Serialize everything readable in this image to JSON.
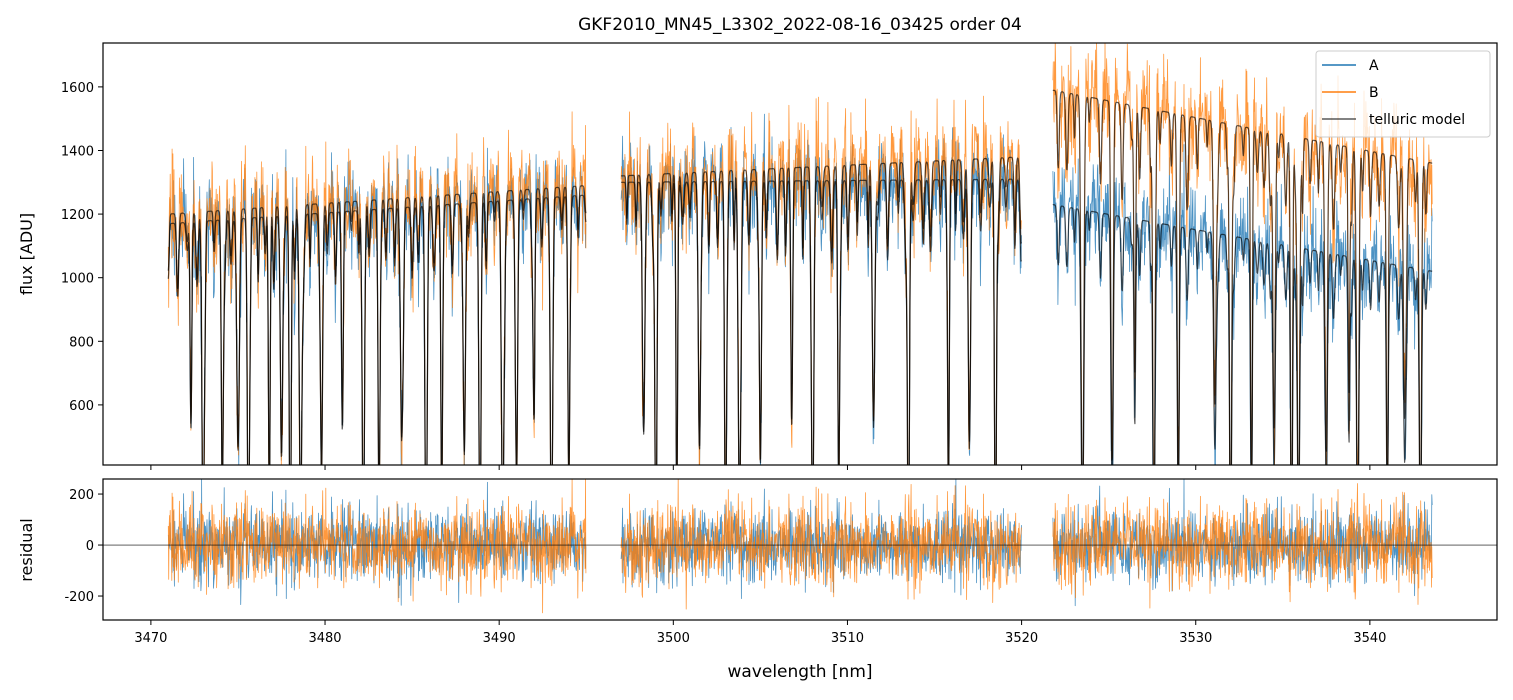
{
  "chart_data": {
    "type": "line",
    "title": "GKF2010_MN45_L3302_2022-08-16_03425  order 04",
    "xlabel": "wavelength [nm]",
    "xlim": [
      3467.25,
      3547.3
    ],
    "xticks": [
      3470,
      3480,
      3490,
      3500,
      3510,
      3520,
      3530,
      3540
    ],
    "panels": [
      {
        "name": "flux",
        "ylabel": "flux [ADU]",
        "ylim": [
          411,
          1738
        ],
        "yticks": [
          600,
          800,
          1000,
          1200,
          1400,
          1600
        ]
      },
      {
        "name": "residual",
        "ylabel": "residual",
        "ylim": [
          -294,
          259
        ],
        "yticks": [
          -200,
          0,
          200
        ]
      }
    ],
    "legend": {
      "placement": "top-right",
      "entries": [
        "A",
        "B",
        "telluric model"
      ]
    },
    "colors": {
      "A": "#1f77b4",
      "B": "#ff7f0e",
      "model": "#000000"
    },
    "segments": [
      {
        "start": 3471.0,
        "end": 3495.0,
        "continuum_A": [
          1170,
          1260
        ],
        "continuum_B": [
          1200,
          1290
        ]
      },
      {
        "start": 3497.0,
        "end": 3520.0,
        "continuum_A": [
          1300,
          1310
        ],
        "continuum_B": [
          1320,
          1380
        ]
      },
      {
        "start": 3521.8,
        "end": 3543.6,
        "continuum_A": [
          1230,
          1020
        ],
        "continuum_B": [
          1590,
          1360
        ]
      }
    ],
    "noise_sigma": {
      "A": 70,
      "B": 80
    },
    "telluric_lines": [
      3472.3,
      3473.0,
      3474.1,
      3475.0,
      3475.6,
      3476.8,
      3477.5,
      3478.0,
      3478.6,
      3479.8,
      3481.0,
      3482.2,
      3483.1,
      3484.4,
      3485.8,
      3486.7,
      3488.0,
      3488.9,
      3490.2,
      3491.0,
      3492.0,
      3493.0,
      3494.0,
      3498.3,
      3499.0,
      3500.2,
      3501.5,
      3503.0,
      3503.8,
      3505.0,
      3506.8,
      3508.0,
      3509.5,
      3511.5,
      3513.5,
      3515.8,
      3517.0,
      3518.5,
      3523.5,
      3525.2,
      3526.5,
      3527.6,
      3529.0,
      3531.1,
      3532.0,
      3533.2,
      3534.5,
      3535.5,
      3535.9,
      3537.5,
      3538.8,
      3539.3,
      3541.0,
      3542.0,
      3542.9
    ]
  }
}
